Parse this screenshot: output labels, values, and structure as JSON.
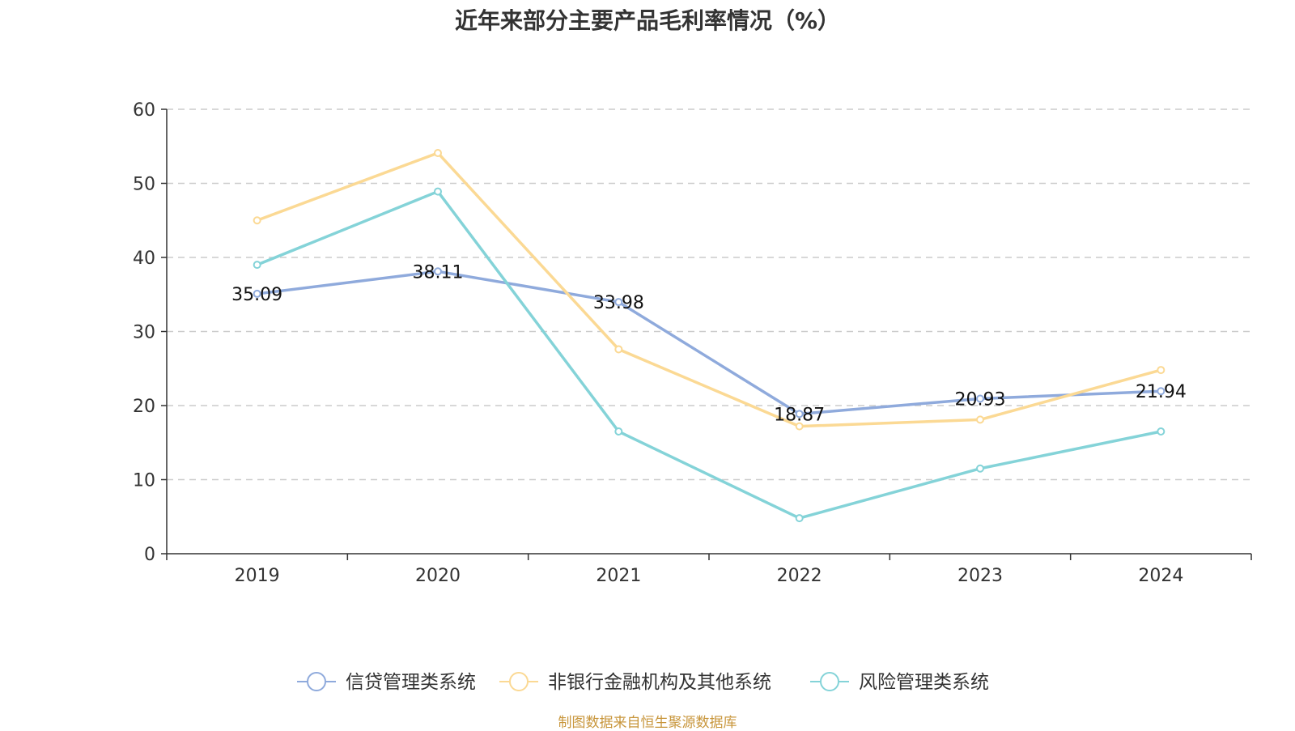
{
  "colors": {
    "series": [
      "#8faadc",
      "#fbd994",
      "#84d3d8"
    ],
    "axis": "#333333",
    "grid": "#cccccc",
    "text": "#333333",
    "footer": "#c8963c"
  },
  "chart_data": {
    "type": "line",
    "title": "近年来部分主要产品毛利率情况（%）",
    "xlabel": "",
    "ylabel": "",
    "categories": [
      "2019",
      "2020",
      "2021",
      "2022",
      "2023",
      "2024"
    ],
    "ylim": [
      0,
      60
    ],
    "yticks": [
      0,
      10,
      20,
      30,
      40,
      50,
      60
    ],
    "grid": true,
    "legend_position": "bottom-center",
    "series": [
      {
        "name": "信贷管理类系统",
        "values": [
          35.09,
          38.11,
          33.98,
          18.87,
          20.93,
          21.94
        ],
        "labels": [
          "35.09",
          "38.11",
          "33.98",
          "18.87",
          "20.93",
          "21.94"
        ]
      },
      {
        "name": "非银行金融机构及其他系统",
        "values": [
          45.0,
          54.1,
          27.6,
          17.2,
          18.1,
          24.8
        ]
      },
      {
        "name": "风险管理类系统",
        "values": [
          39.0,
          48.9,
          16.5,
          4.8,
          11.5,
          16.5
        ]
      }
    ]
  },
  "footer": {
    "source": "制图数据来自恒生聚源数据库"
  }
}
